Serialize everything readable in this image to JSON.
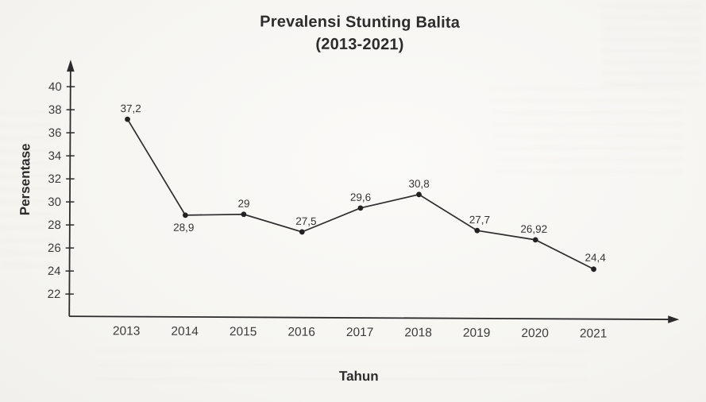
{
  "page": {
    "background_color": "#f6f5f2",
    "ink_color": "#2c2c2c"
  },
  "chart_data": {
    "type": "line",
    "title": "Prevalensi Stunting Balita (2013-2021)",
    "title_line1": "Prevalensi Stunting Balita",
    "title_line2": "(2013-2021)",
    "xlabel": "Tahun",
    "ylabel": "Persentase",
    "categories": [
      "2013",
      "2014",
      "2015",
      "2016",
      "2017",
      "2018",
      "2019",
      "2020",
      "2021"
    ],
    "values": [
      37.2,
      28.9,
      29,
      27.5,
      29.6,
      30.8,
      27.7,
      26.92,
      24.4
    ],
    "point_labels": [
      "37,2",
      "28,9",
      "29",
      "27,5",
      "29,6",
      "30,8",
      "27,7",
      "26,92",
      "24,4"
    ],
    "y_ticks": [
      22,
      24,
      26,
      28,
      30,
      32,
      34,
      36,
      38,
      40
    ],
    "ylim": [
      20,
      42
    ],
    "grid": false,
    "legend": "none",
    "marker": "filled-circle",
    "line_color": "#2d2d2d",
    "axis_arrowheads": true
  }
}
